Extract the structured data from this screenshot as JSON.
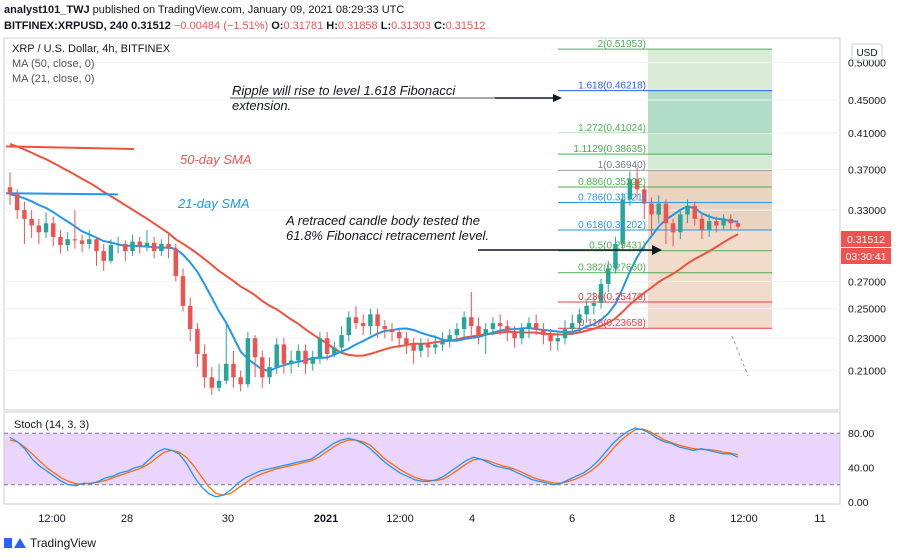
{
  "header": {
    "publisher": "analyst101_TWJ",
    "published_text": "published on TradingView.com, January 09, 2021 08:29:33 UTC",
    "symbol": "BITFINEX:XRPUSD, 240",
    "last": "0.31512",
    "change": "−0.00484 (−1.51%)",
    "o_label": "O:",
    "o": "0.31781",
    "h_label": "H:",
    "h": "0.31858",
    "l_label": "L:",
    "l": "0.31303",
    "c_label": "C:",
    "c": "0.31512"
  },
  "legend": {
    "title": "XRP / U.S. Dollar, 4h, BITFINEX",
    "ma50": "MA (50, close, 0)",
    "ma21": "MA (21, close, 0)"
  },
  "currency_button": "USD",
  "price_label": "0.31512",
  "countdown_label": "03:30:41",
  "annotations": {
    "sma50": "50-day SMA",
    "sma21": "21-day SMA",
    "fib_note_1": "Ripple will rise to level 1.618 Fibonacci",
    "fib_note_2": "extension.",
    "candle_note_1": "A retraced candle body tested the",
    "candle_note_2": "61.8% Fibonacci retracement level."
  },
  "stoch_title": "Stoch (14, 3, 3)",
  "footer": {
    "brand": "TradingView"
  },
  "colors": {
    "up": "#26a69a",
    "down": "#ef5350",
    "ma50": "#f0513c",
    "ma21": "#2196f3",
    "stoch_k": "#2196f3",
    "stoch_d": "#ff6d00",
    "stoch_band": "#d9b3ff"
  },
  "chart_data": [
    {
      "type": "candlestick",
      "title": "XRP / U.S. Dollar, 4h, BITFINEX",
      "x_tick_labels": [
        "12:00",
        "28",
        "30",
        "2021",
        "12:00",
        "4",
        "6",
        "8",
        "12:00",
        "11"
      ],
      "y_tick_labels": [
        "0.50000",
        "0.45000",
        "0.41000",
        "0.37000",
        "0.33000",
        "0.27000",
        "0.25000",
        "0.23000",
        "0.21000"
      ],
      "ylim": [
        0.19,
        0.53
      ],
      "y_scale": "log",
      "series": [
        {
          "name": "MA (50, close, 0)",
          "values_note": "50-day SMA"
        },
        {
          "name": "MA (21, close, 0)",
          "values_note": "21-day SMA"
        }
      ],
      "candles": [
        [
          0.352,
          0.345,
          0.367,
          0.335
        ],
        [
          0.345,
          0.33,
          0.35,
          0.322
        ],
        [
          0.33,
          0.322,
          0.338,
          0.3
        ],
        [
          0.322,
          0.316,
          0.33,
          0.305
        ],
        [
          0.316,
          0.31,
          0.322,
          0.3
        ],
        [
          0.31,
          0.318,
          0.328,
          0.305
        ],
        [
          0.318,
          0.306,
          0.324,
          0.298
        ],
        [
          0.306,
          0.299,
          0.312,
          0.292
        ],
        [
          0.299,
          0.304,
          0.31,
          0.294
        ],
        [
          0.304,
          0.303,
          0.33,
          0.296
        ],
        [
          0.303,
          0.3,
          0.308,
          0.293
        ],
        [
          0.3,
          0.304,
          0.312,
          0.296
        ],
        [
          0.304,
          0.294,
          0.306,
          0.282
        ],
        [
          0.294,
          0.286,
          0.3,
          0.278
        ],
        [
          0.286,
          0.299,
          0.304,
          0.284
        ],
        [
          0.299,
          0.3,
          0.306,
          0.292
        ],
        [
          0.3,
          0.294,
          0.303,
          0.286
        ],
        [
          0.294,
          0.302,
          0.308,
          0.29
        ],
        [
          0.302,
          0.298,
          0.306,
          0.292
        ],
        [
          0.298,
          0.301,
          0.312,
          0.294
        ],
        [
          0.301,
          0.294,
          0.306,
          0.288
        ],
        [
          0.294,
          0.3,
          0.304,
          0.29
        ],
        [
          0.3,
          0.296,
          0.31,
          0.288
        ],
        [
          0.296,
          0.274,
          0.3,
          0.27
        ],
        [
          0.274,
          0.252,
          0.28,
          0.248
        ],
        [
          0.252,
          0.236,
          0.258,
          0.228
        ],
        [
          0.236,
          0.22,
          0.24,
          0.212
        ],
        [
          0.22,
          0.206,
          0.226,
          0.2
        ],
        [
          0.206,
          0.2,
          0.212,
          0.196
        ],
        [
          0.2,
          0.204,
          0.214,
          0.198
        ],
        [
          0.204,
          0.214,
          0.24,
          0.202
        ],
        [
          0.214,
          0.206,
          0.222,
          0.2
        ],
        [
          0.206,
          0.202,
          0.21,
          0.198
        ],
        [
          0.202,
          0.23,
          0.234,
          0.2
        ],
        [
          0.23,
          0.218,
          0.232,
          0.206
        ],
        [
          0.218,
          0.206,
          0.222,
          0.2
        ],
        [
          0.206,
          0.212,
          0.218,
          0.202
        ],
        [
          0.212,
          0.226,
          0.23,
          0.208
        ],
        [
          0.226,
          0.214,
          0.23,
          0.208
        ],
        [
          0.214,
          0.216,
          0.222,
          0.208
        ],
        [
          0.216,
          0.222,
          0.226,
          0.212
        ],
        [
          0.222,
          0.214,
          0.226,
          0.208
        ],
        [
          0.214,
          0.218,
          0.222,
          0.21
        ],
        [
          0.218,
          0.23,
          0.234,
          0.214
        ],
        [
          0.23,
          0.22,
          0.234,
          0.216
        ],
        [
          0.22,
          0.224,
          0.228,
          0.218
        ],
        [
          0.224,
          0.232,
          0.238,
          0.22
        ],
        [
          0.232,
          0.244,
          0.248,
          0.228
        ],
        [
          0.244,
          0.24,
          0.252,
          0.236
        ],
        [
          0.24,
          0.238,
          0.246,
          0.232
        ],
        [
          0.238,
          0.246,
          0.25,
          0.232
        ],
        [
          0.246,
          0.238,
          0.25,
          0.23
        ],
        [
          0.238,
          0.236,
          0.242,
          0.23
        ],
        [
          0.236,
          0.234,
          0.24,
          0.228
        ],
        [
          0.234,
          0.23,
          0.236,
          0.224
        ],
        [
          0.23,
          0.226,
          0.234,
          0.22
        ],
        [
          0.226,
          0.222,
          0.23,
          0.214
        ],
        [
          0.222,
          0.226,
          0.23,
          0.218
        ],
        [
          0.226,
          0.224,
          0.23,
          0.218
        ],
        [
          0.224,
          0.226,
          0.232,
          0.22
        ],
        [
          0.226,
          0.228,
          0.234,
          0.222
        ],
        [
          0.228,
          0.232,
          0.236,
          0.224
        ],
        [
          0.232,
          0.236,
          0.24,
          0.228
        ],
        [
          0.236,
          0.244,
          0.248,
          0.23
        ],
        [
          0.244,
          0.238,
          0.262,
          0.232
        ],
        [
          0.238,
          0.232,
          0.244,
          0.226
        ],
        [
          0.232,
          0.236,
          0.24,
          0.22
        ],
        [
          0.236,
          0.24,
          0.244,
          0.232
        ],
        [
          0.24,
          0.238,
          0.246,
          0.232
        ],
        [
          0.238,
          0.234,
          0.242,
          0.228
        ],
        [
          0.234,
          0.23,
          0.238,
          0.224
        ],
        [
          0.23,
          0.236,
          0.24,
          0.226
        ],
        [
          0.236,
          0.24,
          0.244,
          0.23
        ],
        [
          0.24,
          0.236,
          0.246,
          0.232
        ],
        [
          0.236,
          0.232,
          0.24,
          0.226
        ],
        [
          0.232,
          0.228,
          0.236,
          0.222
        ],
        [
          0.228,
          0.23,
          0.234,
          0.222
        ],
        [
          0.23,
          0.236,
          0.242,
          0.226
        ],
        [
          0.236,
          0.24,
          0.246,
          0.232
        ],
        [
          0.24,
          0.246,
          0.25,
          0.234
        ],
        [
          0.246,
          0.252,
          0.256,
          0.24
        ],
        [
          0.252,
          0.254,
          0.262,
          0.246
        ],
        [
          0.254,
          0.268,
          0.272,
          0.25
        ],
        [
          0.268,
          0.28,
          0.286,
          0.262
        ],
        [
          0.28,
          0.3,
          0.306,
          0.276
        ],
        [
          0.3,
          0.34,
          0.346,
          0.296
        ],
        [
          0.34,
          0.36,
          0.368,
          0.334
        ],
        [
          0.36,
          0.35,
          0.372,
          0.34
        ],
        [
          0.35,
          0.336,
          0.354,
          0.322
        ],
        [
          0.336,
          0.326,
          0.342,
          0.308
        ],
        [
          0.326,
          0.336,
          0.344,
          0.318
        ],
        [
          0.336,
          0.318,
          0.34,
          0.3
        ],
        [
          0.318,
          0.31,
          0.322,
          0.298
        ],
        [
          0.31,
          0.326,
          0.33,
          0.304
        ],
        [
          0.326,
          0.334,
          0.34,
          0.318
        ],
        [
          0.334,
          0.322,
          0.338,
          0.316
        ],
        [
          0.322,
          0.312,
          0.326,
          0.304
        ],
        [
          0.312,
          0.32,
          0.326,
          0.306
        ],
        [
          0.32,
          0.316,
          0.324,
          0.31
        ],
        [
          0.316,
          0.322,
          0.326,
          0.312
        ],
        [
          0.322,
          0.318,
          0.326,
          0.312
        ],
        [
          0.318,
          0.315,
          0.319,
          0.313
        ]
      ],
      "fibonacci": [
        {
          "ratio": "2",
          "value": "0.51953",
          "color": "#4caf50"
        },
        {
          "ratio": "1.618",
          "value": "0.46218",
          "color": "#2962ff"
        },
        {
          "ratio": "1.272",
          "value": "0.41024",
          "color": "#4caf50"
        },
        {
          "ratio": "1.1129",
          "value": "0.38635",
          "color": "#4caf50"
        },
        {
          "ratio": "1",
          "value": "0.36940",
          "color": "#787b86"
        },
        {
          "ratio": "0.886",
          "value": "0.35222",
          "color": "#4caf50"
        },
        {
          "ratio": "0.786",
          "value": "0.33721",
          "color": "#2196f3"
        },
        {
          "ratio": "0.618",
          "value": "0.31202",
          "color": "#2196f3"
        },
        {
          "ratio": "0.5",
          "value": "0.29431",
          "color": "#4caf50"
        },
        {
          "ratio": "0.382",
          "value": "0.27660",
          "color": "#4caf50"
        },
        {
          "ratio": "0.236",
          "value": "0.25470",
          "color": "#f23645"
        },
        {
          "ratio": "0.118",
          "value": "0.23658",
          "color": "#f23645"
        }
      ]
    },
    {
      "type": "line",
      "title": "Stoch (14, 3, 3)",
      "y_tick_labels": [
        "80.00",
        "40.00",
        "0.00"
      ],
      "ylim": [
        0,
        100
      ],
      "bands": [
        20,
        80
      ],
      "series": [
        {
          "name": "%K",
          "values": [
            75,
            70,
            62,
            50,
            42,
            36,
            30,
            24,
            20,
            19,
            22,
            21,
            24,
            28,
            30,
            34,
            36,
            40,
            42,
            50,
            58,
            62,
            60,
            56,
            45,
            30,
            18,
            10,
            6,
            8,
            14,
            22,
            28,
            32,
            36,
            38,
            40,
            42,
            44,
            46,
            48,
            50,
            56,
            62,
            68,
            72,
            74,
            72,
            68,
            62,
            54,
            46,
            40,
            34,
            30,
            26,
            24,
            24,
            26,
            30,
            36,
            42,
            48,
            52,
            50,
            46,
            42,
            40,
            38,
            34,
            30,
            26,
            24,
            22,
            20,
            22,
            26,
            30,
            34,
            40,
            48,
            58,
            68,
            76,
            82,
            86,
            84,
            80,
            74,
            70,
            68,
            64,
            62,
            60,
            62,
            60,
            58,
            56,
            56,
            52
          ]
        },
        {
          "name": "%D",
          "values": [
            72,
            70,
            64,
            56,
            48,
            40,
            34,
            28,
            24,
            21,
            21,
            22,
            23,
            25,
            28,
            31,
            34,
            37,
            40,
            45,
            52,
            58,
            60,
            58,
            52,
            42,
            30,
            18,
            10,
            8,
            10,
            16,
            22,
            28,
            32,
            35,
            38,
            40,
            42,
            44,
            46,
            48,
            52,
            58,
            64,
            69,
            72,
            72,
            70,
            66,
            58,
            50,
            44,
            38,
            33,
            29,
            26,
            25,
            25,
            27,
            32,
            38,
            44,
            49,
            50,
            48,
            45,
            42,
            40,
            37,
            33,
            29,
            26,
            24,
            22,
            22,
            24,
            27,
            31,
            36,
            43,
            52,
            62,
            71,
            78,
            84,
            85,
            82,
            77,
            72,
            69,
            66,
            64,
            62,
            61,
            61,
            60,
            58,
            57,
            55
          ]
        }
      ]
    }
  ]
}
